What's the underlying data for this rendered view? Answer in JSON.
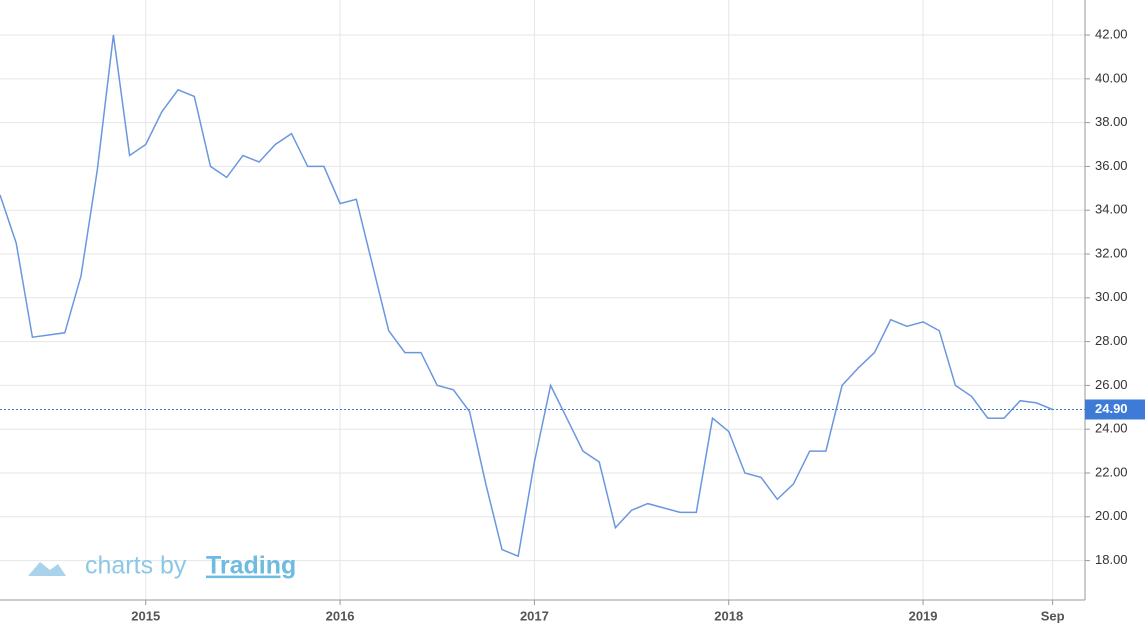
{
  "chart_data": {
    "type": "line",
    "color": "#6a97df",
    "x": [
      "2014-04",
      "2014-05",
      "2014-06",
      "2014-07",
      "2014-08",
      "2014-09",
      "2014-10",
      "2014-11",
      "2014-12",
      "2015-01",
      "2015-02",
      "2015-03",
      "2015-04",
      "2015-05",
      "2015-06",
      "2015-07",
      "2015-08",
      "2015-09",
      "2015-10",
      "2015-11",
      "2015-12",
      "2016-01",
      "2016-02",
      "2016-03",
      "2016-04",
      "2016-05",
      "2016-06",
      "2016-07",
      "2016-08",
      "2016-09",
      "2016-10",
      "2016-11",
      "2016-12",
      "2017-01",
      "2017-02",
      "2017-03",
      "2017-04",
      "2017-05",
      "2017-06",
      "2017-07",
      "2017-08",
      "2017-09",
      "2017-10",
      "2017-11",
      "2017-12",
      "2018-01",
      "2018-02",
      "2018-03",
      "2018-04",
      "2018-05",
      "2018-06",
      "2018-07",
      "2018-08",
      "2018-09",
      "2018-10",
      "2018-11",
      "2018-12",
      "2019-01",
      "2019-02",
      "2019-03",
      "2019-04",
      "2019-05",
      "2019-06",
      "2019-07",
      "2019-08",
      "2019-09"
    ],
    "values": [
      34.7,
      32.5,
      28.2,
      28.3,
      28.4,
      31.0,
      35.8,
      42.0,
      36.5,
      37.0,
      38.5,
      39.5,
      39.2,
      36.0,
      35.5,
      36.5,
      36.2,
      37.0,
      37.5,
      36.0,
      36.0,
      34.3,
      34.5,
      31.5,
      28.5,
      27.5,
      27.5,
      26.0,
      25.8,
      24.8,
      21.5,
      18.5,
      18.2,
      22.5,
      26.0,
      24.5,
      23.0,
      22.5,
      19.5,
      20.3,
      20.6,
      20.4,
      20.2,
      20.2,
      24.5,
      23.9,
      22.0,
      21.8,
      20.8,
      21.5,
      23.0,
      23.0,
      26.0,
      26.8,
      27.5,
      29.0,
      28.7,
      28.9,
      28.5,
      26.0,
      25.5,
      24.5,
      24.5,
      25.3,
      25.2,
      24.9
    ],
    "xlim": [
      "2014-04",
      "2019-11"
    ],
    "xticks": [
      {
        "value": "2015-01",
        "label": "2015"
      },
      {
        "value": "2016-01",
        "label": "2016"
      },
      {
        "value": "2017-01",
        "label": "2017"
      },
      {
        "value": "2018-01",
        "label": "2018"
      },
      {
        "value": "2019-01",
        "label": "2019"
      },
      {
        "value": "2019-09",
        "label": "Sep"
      }
    ],
    "ylim": [
      16.2,
      43.6
    ],
    "yticks": [
      {
        "value": 18,
        "label": "18.00"
      },
      {
        "value": 20,
        "label": "20.00"
      },
      {
        "value": 22,
        "label": "22.00"
      },
      {
        "value": 24,
        "label": "24.00"
      },
      {
        "value": 26,
        "label": "26.00"
      },
      {
        "value": 28,
        "label": "28.00"
      },
      {
        "value": 30,
        "label": "30.00"
      },
      {
        "value": 32,
        "label": "32.00"
      },
      {
        "value": 34,
        "label": "34.00"
      },
      {
        "value": 36,
        "label": "36.00"
      },
      {
        "value": 38,
        "label": "38.00"
      },
      {
        "value": 40,
        "label": "40.00"
      },
      {
        "value": 42,
        "label": "42.00"
      }
    ],
    "grid": true,
    "last_value": {
      "value": 24.9,
      "label": "24.90"
    },
    "watermark": {
      "prefix": "charts by",
      "brand": "Trading"
    }
  }
}
